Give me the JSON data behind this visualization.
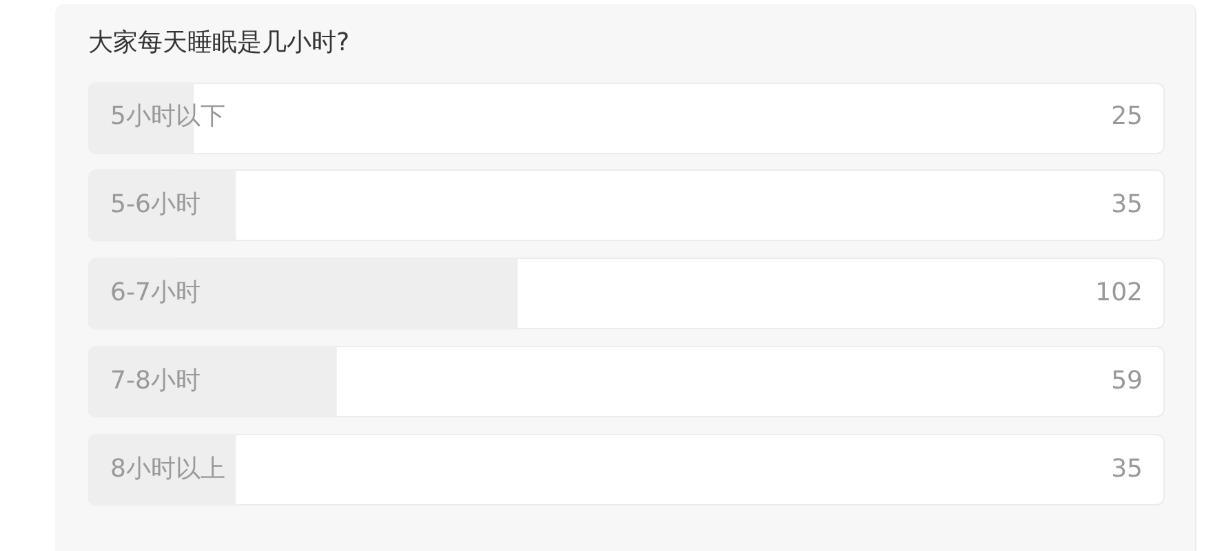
{
  "chart_data": {
    "type": "bar",
    "orientation": "horizontal",
    "title": "大家每天睡眠是几小时?",
    "categories": [
      "5小时以下",
      "5-6小时",
      "6-7小时",
      "7-8小时",
      "8小时以上"
    ],
    "values": [
      25,
      35,
      102,
      59,
      35
    ],
    "color": "#eeeeee",
    "xlim": [
      0,
      256
    ],
    "data_labels": true
  }
}
